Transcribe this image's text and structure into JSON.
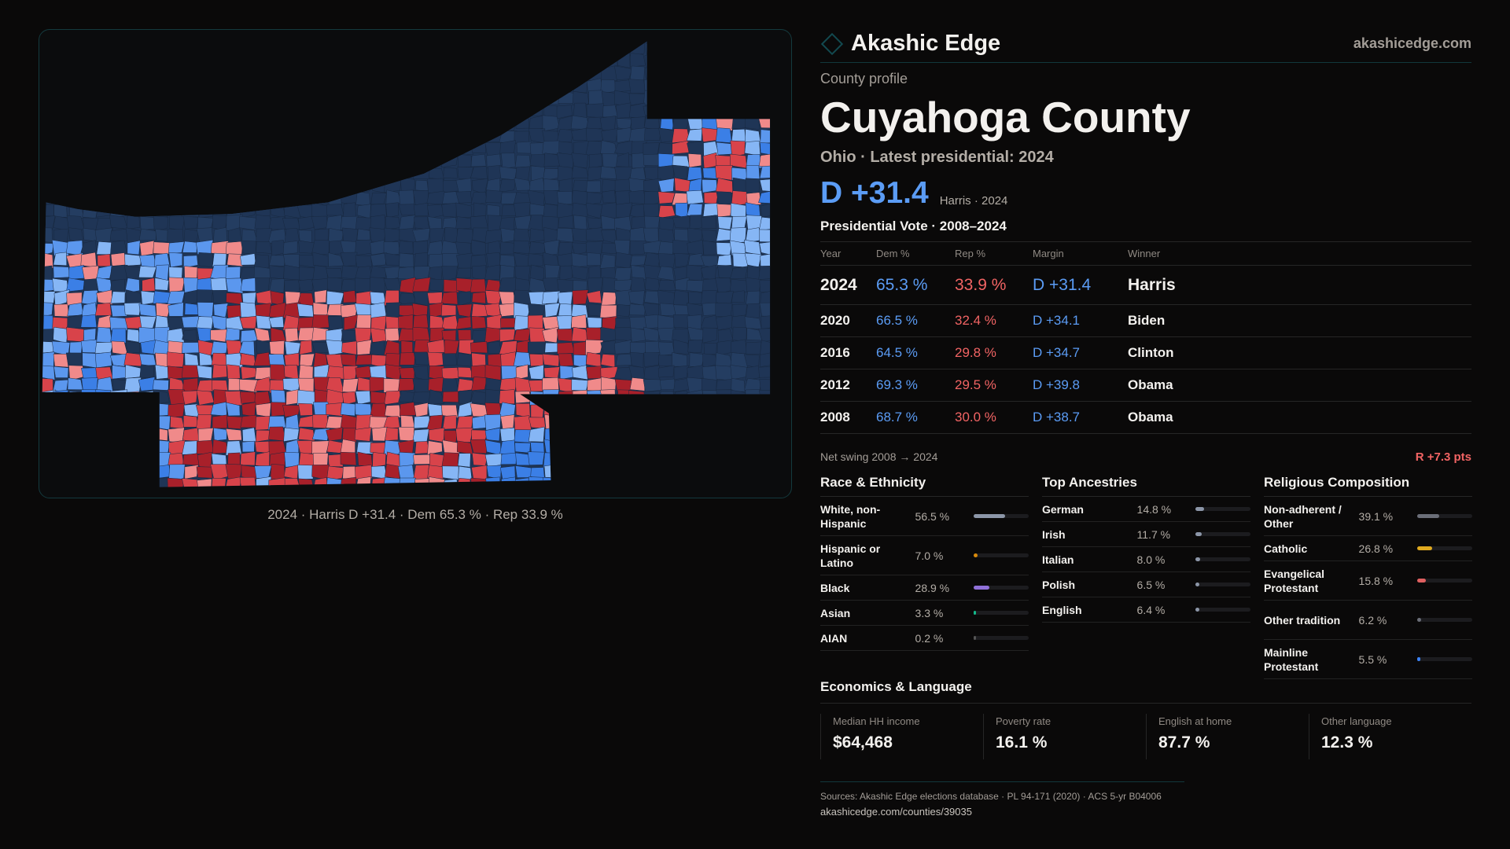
{
  "brand": {
    "name": "Akashic Edge",
    "site": "akashicedge.com"
  },
  "profile": {
    "kicker": "County profile",
    "title": "Cuyahoga County",
    "subtitle": "Ohio · Latest presidential: 2024",
    "margin": "D +31.4",
    "margin_note": "Harris · 2024"
  },
  "map": {
    "caption": "2024 · Harris D +31.4 · Dem 65.3 % · Rep 33.9 %",
    "colors": {
      "base": "#1f3556",
      "navy2": "#243d61",
      "dark_red": "#a8202a",
      "red": "#d8434a",
      "pink": "#f08a8a",
      "blue": "#3b7fe6",
      "light_blue": "#86b6f5",
      "mid_blue": "#5b97ee"
    }
  },
  "vote": {
    "heading": "Presidential Vote · 2008–2024",
    "columns": [
      "Year",
      "Dem %",
      "Rep %",
      "Margin",
      "Winner"
    ],
    "rows": [
      {
        "year": "2024",
        "dem": "65.3 %",
        "rep": "33.9 %",
        "margin": "D +31.4",
        "winner": "Harris"
      },
      {
        "year": "2020",
        "dem": "66.5 %",
        "rep": "32.4 %",
        "margin": "D +34.1",
        "winner": "Biden"
      },
      {
        "year": "2016",
        "dem": "64.5 %",
        "rep": "29.8 %",
        "margin": "D +34.7",
        "winner": "Clinton"
      },
      {
        "year": "2012",
        "dem": "69.3 %",
        "rep": "29.5 %",
        "margin": "D +39.8",
        "winner": "Obama"
      },
      {
        "year": "2008",
        "dem": "68.7 %",
        "rep": "30.0 %",
        "margin": "D +38.7",
        "winner": "Obama"
      }
    ],
    "swing_label": "Net swing 2008 → 2024",
    "swing_value": "R +7.3 pts"
  },
  "race": {
    "title": "Race & Ethnicity",
    "items": [
      {
        "label": "White, non-Hispanic",
        "pct": "56.5 %",
        "value": 56.5,
        "color": "#8c96a8"
      },
      {
        "label": "Hispanic or Latino",
        "pct": "7.0 %",
        "value": 7.0,
        "color": "#d98a0b"
      },
      {
        "label": "Black",
        "pct": "28.9 %",
        "value": 28.9,
        "color": "#8f70d8"
      },
      {
        "label": "Asian",
        "pct": "3.3 %",
        "value": 3.3,
        "color": "#14b88a"
      },
      {
        "label": "AIAN",
        "pct": "0.2 %",
        "value": 0.2,
        "color": "#555"
      }
    ]
  },
  "ancestry": {
    "title": "Top Ancestries",
    "items": [
      {
        "label": "German",
        "pct": "14.8 %",
        "value": 14.8,
        "color": "#8c96a8"
      },
      {
        "label": "Irish",
        "pct": "11.7 %",
        "value": 11.7,
        "color": "#8c96a8"
      },
      {
        "label": "Italian",
        "pct": "8.0 %",
        "value": 8.0,
        "color": "#8c96a8"
      },
      {
        "label": "Polish",
        "pct": "6.5 %",
        "value": 6.5,
        "color": "#8c96a8"
      },
      {
        "label": "English",
        "pct": "6.4 %",
        "value": 6.4,
        "color": "#8c96a8"
      }
    ]
  },
  "religion": {
    "title": "Religious Composition",
    "items": [
      {
        "label": "Non-adherent / Other",
        "pct": "39.1 %",
        "value": 39.1,
        "color": "#6b6e78"
      },
      {
        "label": "Catholic",
        "pct": "26.8 %",
        "value": 26.8,
        "color": "#e0aa1f"
      },
      {
        "label": "Evangelical Protestant",
        "pct": "15.8 %",
        "value": 15.8,
        "color": "#e06060"
      },
      {
        "label": "Other tradition",
        "pct": "6.2 %",
        "value": 6.2,
        "color": "#6b6e78"
      },
      {
        "label": "Mainline Protestant",
        "pct": "5.5 %",
        "value": 5.5,
        "color": "#3b82f6"
      }
    ]
  },
  "econ": {
    "title": "Economics & Language",
    "cards": [
      {
        "label": "Median HH income",
        "value": "$64,468"
      },
      {
        "label": "Poverty rate",
        "value": "16.1 %"
      },
      {
        "label": "English at home",
        "value": "87.7 %"
      },
      {
        "label": "Other language",
        "value": "12.3 %"
      }
    ]
  },
  "footer": {
    "sources": "Sources: Akashic Edge elections database · PL 94-171 (2020) · ACS 5-yr B04006",
    "url": "akashicedge.com/counties/39035"
  }
}
